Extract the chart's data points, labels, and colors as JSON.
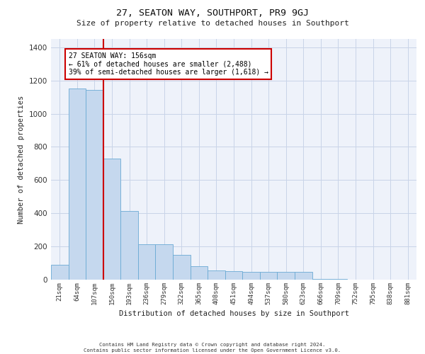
{
  "title": "27, SEATON WAY, SOUTHPORT, PR9 9GJ",
  "subtitle": "Size of property relative to detached houses in Southport",
  "xlabel": "Distribution of detached houses by size in Southport",
  "ylabel": "Number of detached properties",
  "categories": [
    "21sqm",
    "64sqm",
    "107sqm",
    "150sqm",
    "193sqm",
    "236sqm",
    "279sqm",
    "322sqm",
    "365sqm",
    "408sqm",
    "451sqm",
    "494sqm",
    "537sqm",
    "580sqm",
    "623sqm",
    "666sqm",
    "709sqm",
    "752sqm",
    "795sqm",
    "838sqm",
    "881sqm"
  ],
  "values": [
    90,
    1150,
    1145,
    730,
    415,
    215,
    215,
    150,
    80,
    55,
    50,
    48,
    47,
    46,
    45,
    5,
    3,
    1,
    1,
    1,
    1
  ],
  "bar_color": "#c5d8ee",
  "bar_edge_color": "#6aaad4",
  "grid_color": "#c8d4e8",
  "background_color": "#eef2fa",
  "property_line_color": "#cc0000",
  "property_line_x": 2.5,
  "annotation_text": "27 SEATON WAY: 156sqm\n← 61% of detached houses are smaller (2,488)\n39% of semi-detached houses are larger (1,618) →",
  "annotation_box_color": "#cc0000",
  "ylim": [
    0,
    1450
  ],
  "yticks": [
    0,
    200,
    400,
    600,
    800,
    1000,
    1200,
    1400
  ],
  "footer_line1": "Contains HM Land Registry data © Crown copyright and database right 2024.",
  "footer_line2": "Contains public sector information licensed under the Open Government Licence v3.0."
}
